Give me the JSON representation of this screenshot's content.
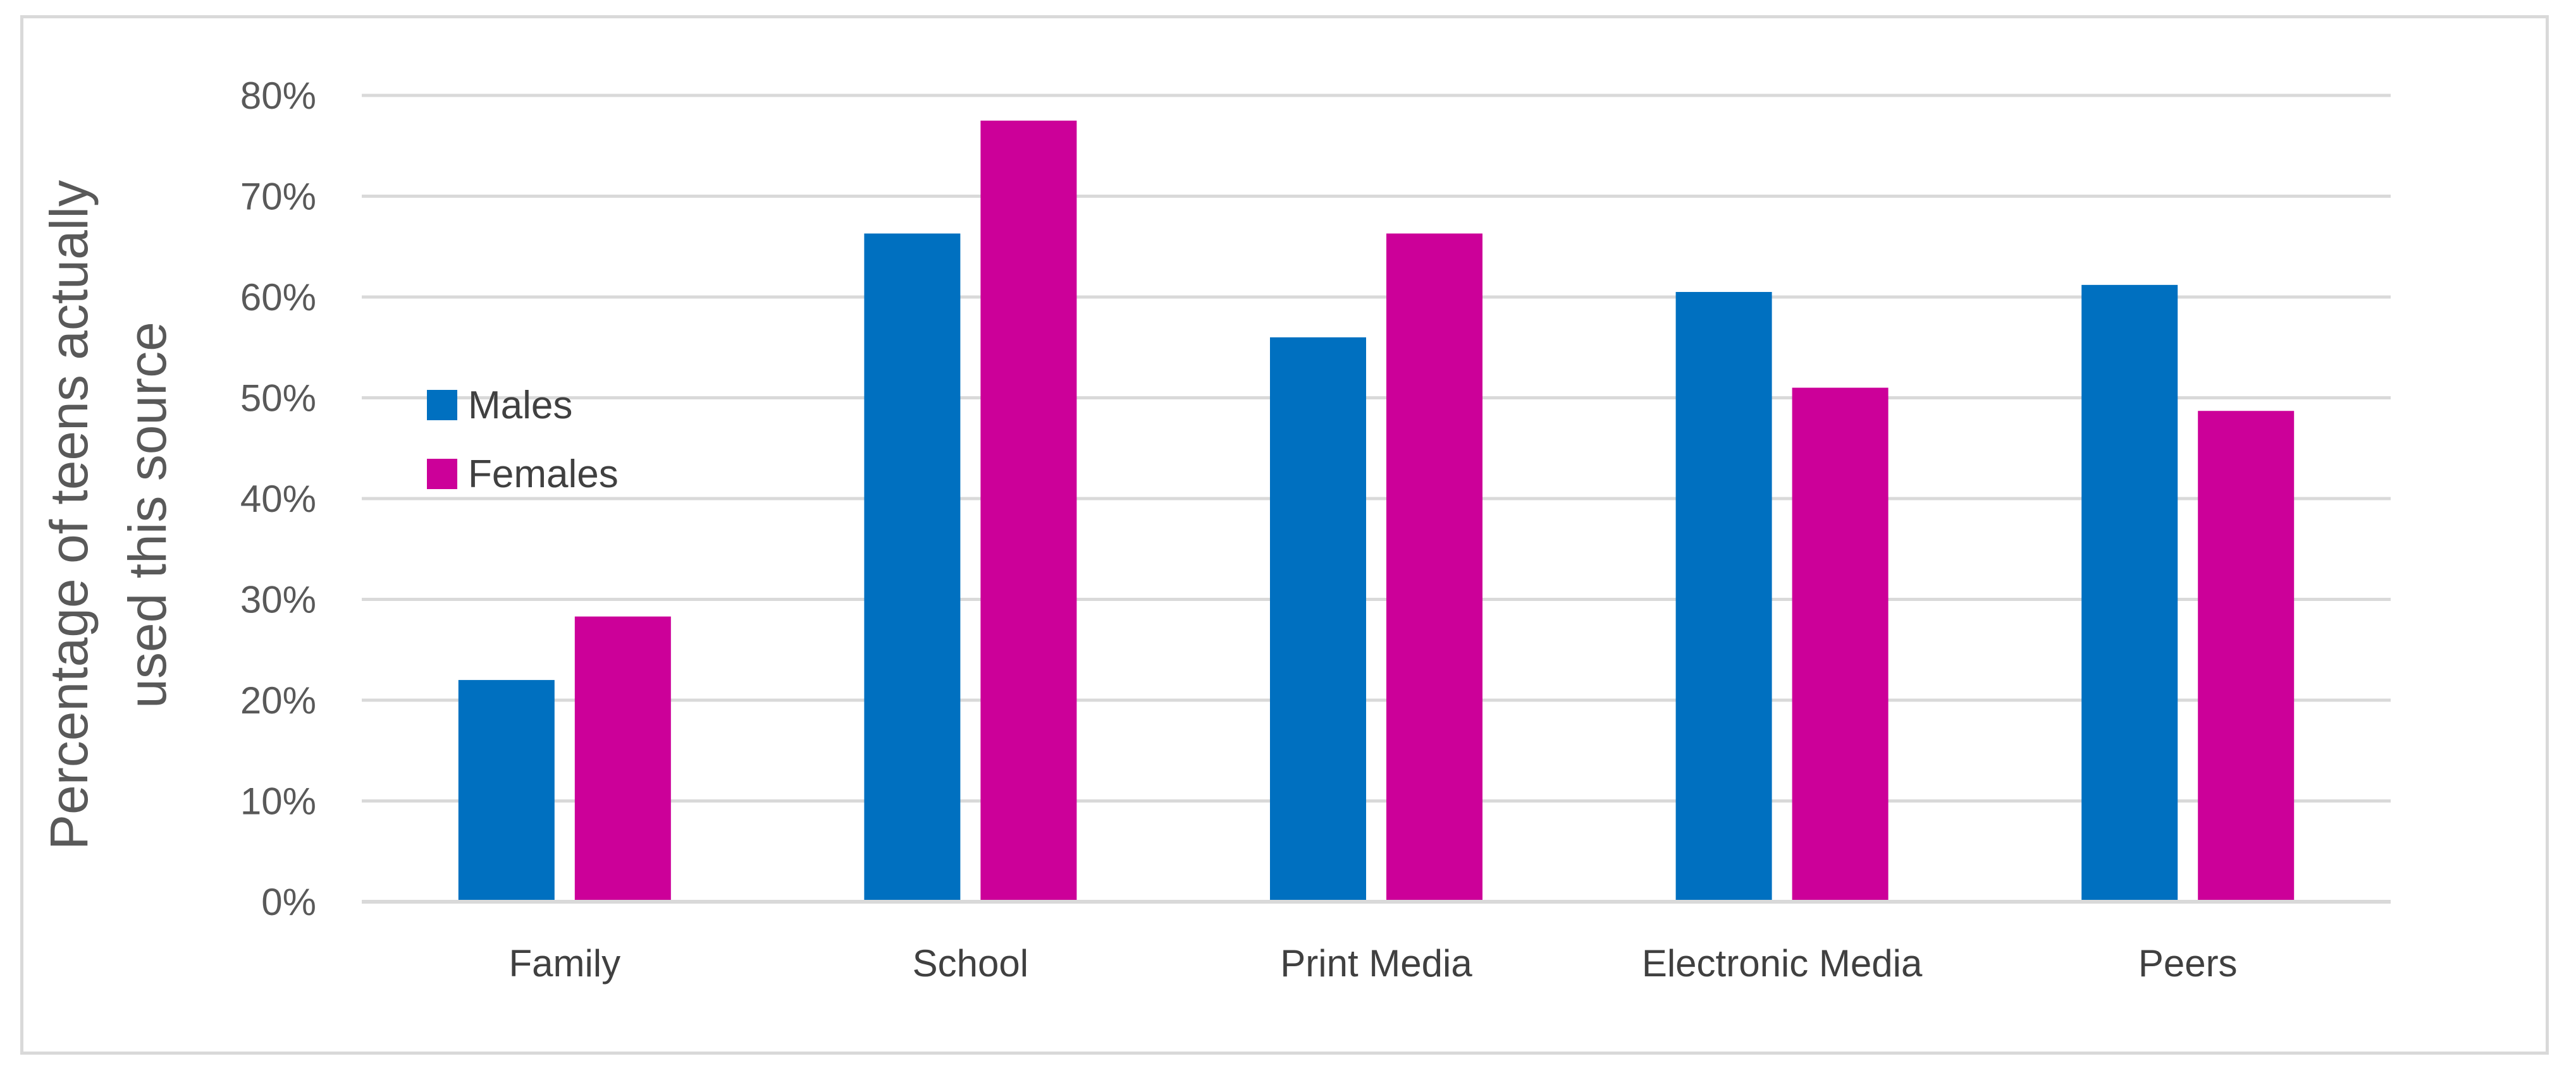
{
  "chart_data": {
    "type": "bar",
    "categories": [
      "Family",
      "School",
      "Print Media",
      "Electronic Media",
      "Peers"
    ],
    "series": [
      {
        "name": "Males",
        "color": "#0070c0",
        "values": [
          22,
          66.3,
          56,
          60.5,
          61.2
        ]
      },
      {
        "name": "Females",
        "color": "#cc0099",
        "values": [
          28.3,
          77.5,
          66.3,
          51,
          48.7
        ]
      }
    ],
    "ylabel_lines": [
      "Percentage  of  teens  actually",
      "used this source"
    ],
    "ylim": [
      0,
      80
    ],
    "yticks": [
      "0%",
      "10%",
      "20%",
      "30%",
      "40%",
      "50%",
      "60%",
      "70%",
      "80%"
    ],
    "grid": true,
    "legend_position": "left"
  }
}
